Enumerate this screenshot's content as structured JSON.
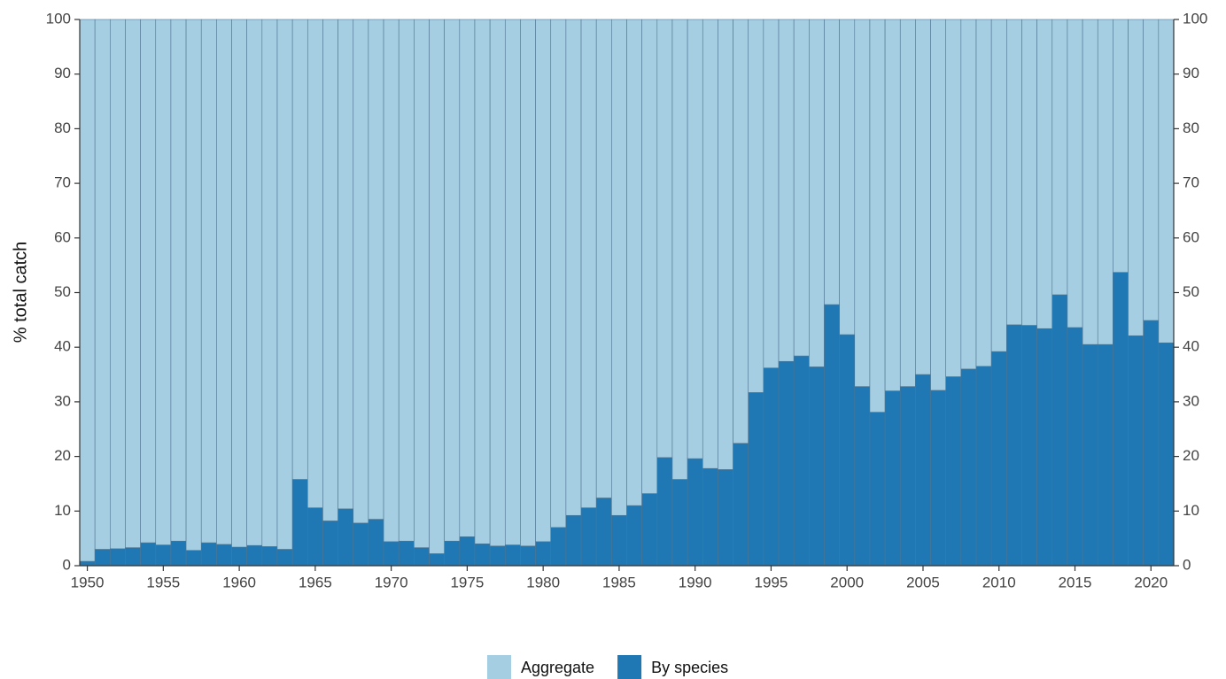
{
  "chart_data": {
    "type": "stacked_bar",
    "y_label": "% total catch",
    "x": [
      1950,
      1951,
      1952,
      1953,
      1954,
      1955,
      1956,
      1957,
      1958,
      1959,
      1960,
      1961,
      1962,
      1963,
      1964,
      1965,
      1966,
      1967,
      1968,
      1969,
      1970,
      1971,
      1972,
      1973,
      1974,
      1975,
      1976,
      1977,
      1978,
      1979,
      1980,
      1981,
      1982,
      1983,
      1984,
      1985,
      1986,
      1987,
      1988,
      1989,
      1990,
      1991,
      1992,
      1993,
      1994,
      1995,
      1996,
      1997,
      1998,
      1999,
      2000,
      2001,
      2002,
      2003,
      2004,
      2005,
      2006,
      2007,
      2008,
      2009,
      2010,
      2011,
      2012,
      2013,
      2014,
      2015,
      2016,
      2017,
      2018,
      2019,
      2020,
      2021
    ],
    "series": [
      {
        "name": "Aggregate",
        "color": "#a6cee3",
        "values": [
          99.2,
          97,
          96.9,
          96.7,
          95.8,
          96.2,
          95.5,
          97.2,
          95.8,
          96.1,
          96.6,
          96.3,
          96.5,
          97,
          84.2,
          89.4,
          91.8,
          89.6,
          92.2,
          91.5,
          95.6,
          95.5,
          96.7,
          97.8,
          95.5,
          94.7,
          96,
          96.4,
          96.2,
          96.4,
          95.6,
          93,
          90.8,
          89.4,
          87.6,
          90.8,
          89,
          86.8,
          80.2,
          84.2,
          80.4,
          82.2,
          82.4,
          77.6,
          68.3,
          63.8,
          62.6,
          61.6,
          63.6,
          52.2,
          57.7,
          67.2,
          71.9,
          68,
          67.2,
          65,
          67.9,
          65.4,
          64,
          63.5,
          60.8,
          55.9,
          56,
          56.6,
          50.4,
          56.4,
          59.5,
          59.5,
          46.3,
          57.9,
          55.1,
          59.2
        ]
      },
      {
        "name": "By species",
        "color": "#1f78b4",
        "values": [
          0.8,
          3,
          3.1,
          3.3,
          4.2,
          3.8,
          4.5,
          2.8,
          4.2,
          3.9,
          3.4,
          3.7,
          3.5,
          3,
          15.8,
          10.6,
          8.2,
          10.4,
          7.8,
          8.5,
          4.4,
          4.5,
          3.3,
          2.2,
          4.5,
          5.3,
          4,
          3.6,
          3.8,
          3.6,
          4.4,
          7,
          9.2,
          10.6,
          12.4,
          9.2,
          11,
          13.2,
          19.8,
          15.8,
          19.6,
          17.8,
          17.6,
          22.4,
          31.7,
          36.2,
          37.4,
          38.4,
          36.4,
          47.8,
          42.3,
          32.8,
          28.1,
          32,
          32.8,
          35,
          32.1,
          34.6,
          36,
          36.5,
          39.2,
          44.1,
          44,
          43.4,
          49.6,
          43.6,
          40.5,
          40.5,
          53.7,
          42.1,
          44.9,
          40.8
        ]
      }
    ],
    "xlim": [
      1949.5,
      2021.5
    ],
    "xticks": [
      1950,
      1955,
      1960,
      1965,
      1970,
      1975,
      1980,
      1985,
      1990,
      1995,
      2000,
      2005,
      2010,
      2015,
      2020
    ],
    "ylim": [
      0,
      100
    ],
    "yticks": [
      0,
      10,
      20,
      30,
      40,
      50,
      60,
      70,
      80,
      90,
      100
    ],
    "right_axis": true,
    "legend": "bottom"
  }
}
